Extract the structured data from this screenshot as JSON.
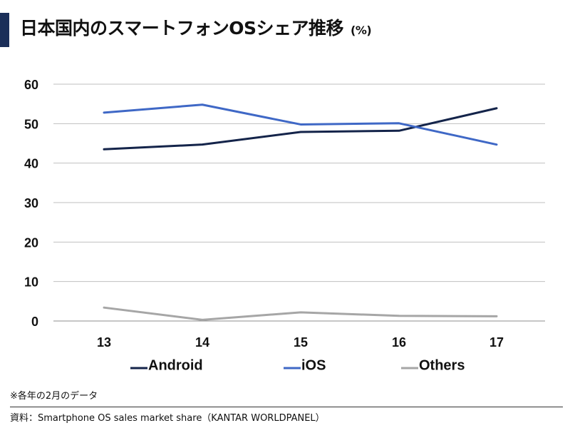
{
  "header": {
    "title": "日本国内のスマートフォンOSシェア推移",
    "unit": "(%)",
    "accent_color": "#1b2f59"
  },
  "chart_data": {
    "type": "line",
    "title": "日本国内のスマートフォンOSシェア推移 (%)",
    "x": [
      "13",
      "14",
      "15",
      "16",
      "17"
    ],
    "ylim": [
      0,
      60
    ],
    "yticks": [
      0,
      10,
      20,
      30,
      40,
      50,
      60
    ],
    "grid": true,
    "legend_position": "bottom",
    "series": [
      {
        "name": "Android",
        "color": "#14244a",
        "values": [
          43.5,
          44.7,
          47.9,
          48.2,
          53.9
        ]
      },
      {
        "name": "iOS",
        "color": "#3f68c6",
        "values": [
          52.8,
          54.8,
          49.8,
          50.1,
          44.7
        ]
      },
      {
        "name": "Others",
        "color": "#a6a6a6",
        "values": [
          3.4,
          0.3,
          2.2,
          1.3,
          1.2
        ]
      }
    ]
  },
  "footer": {
    "note": "※各年の2月のデータ",
    "source": "資料：Smartphone OS sales market share（KANTAR WORLDPANEL）"
  }
}
